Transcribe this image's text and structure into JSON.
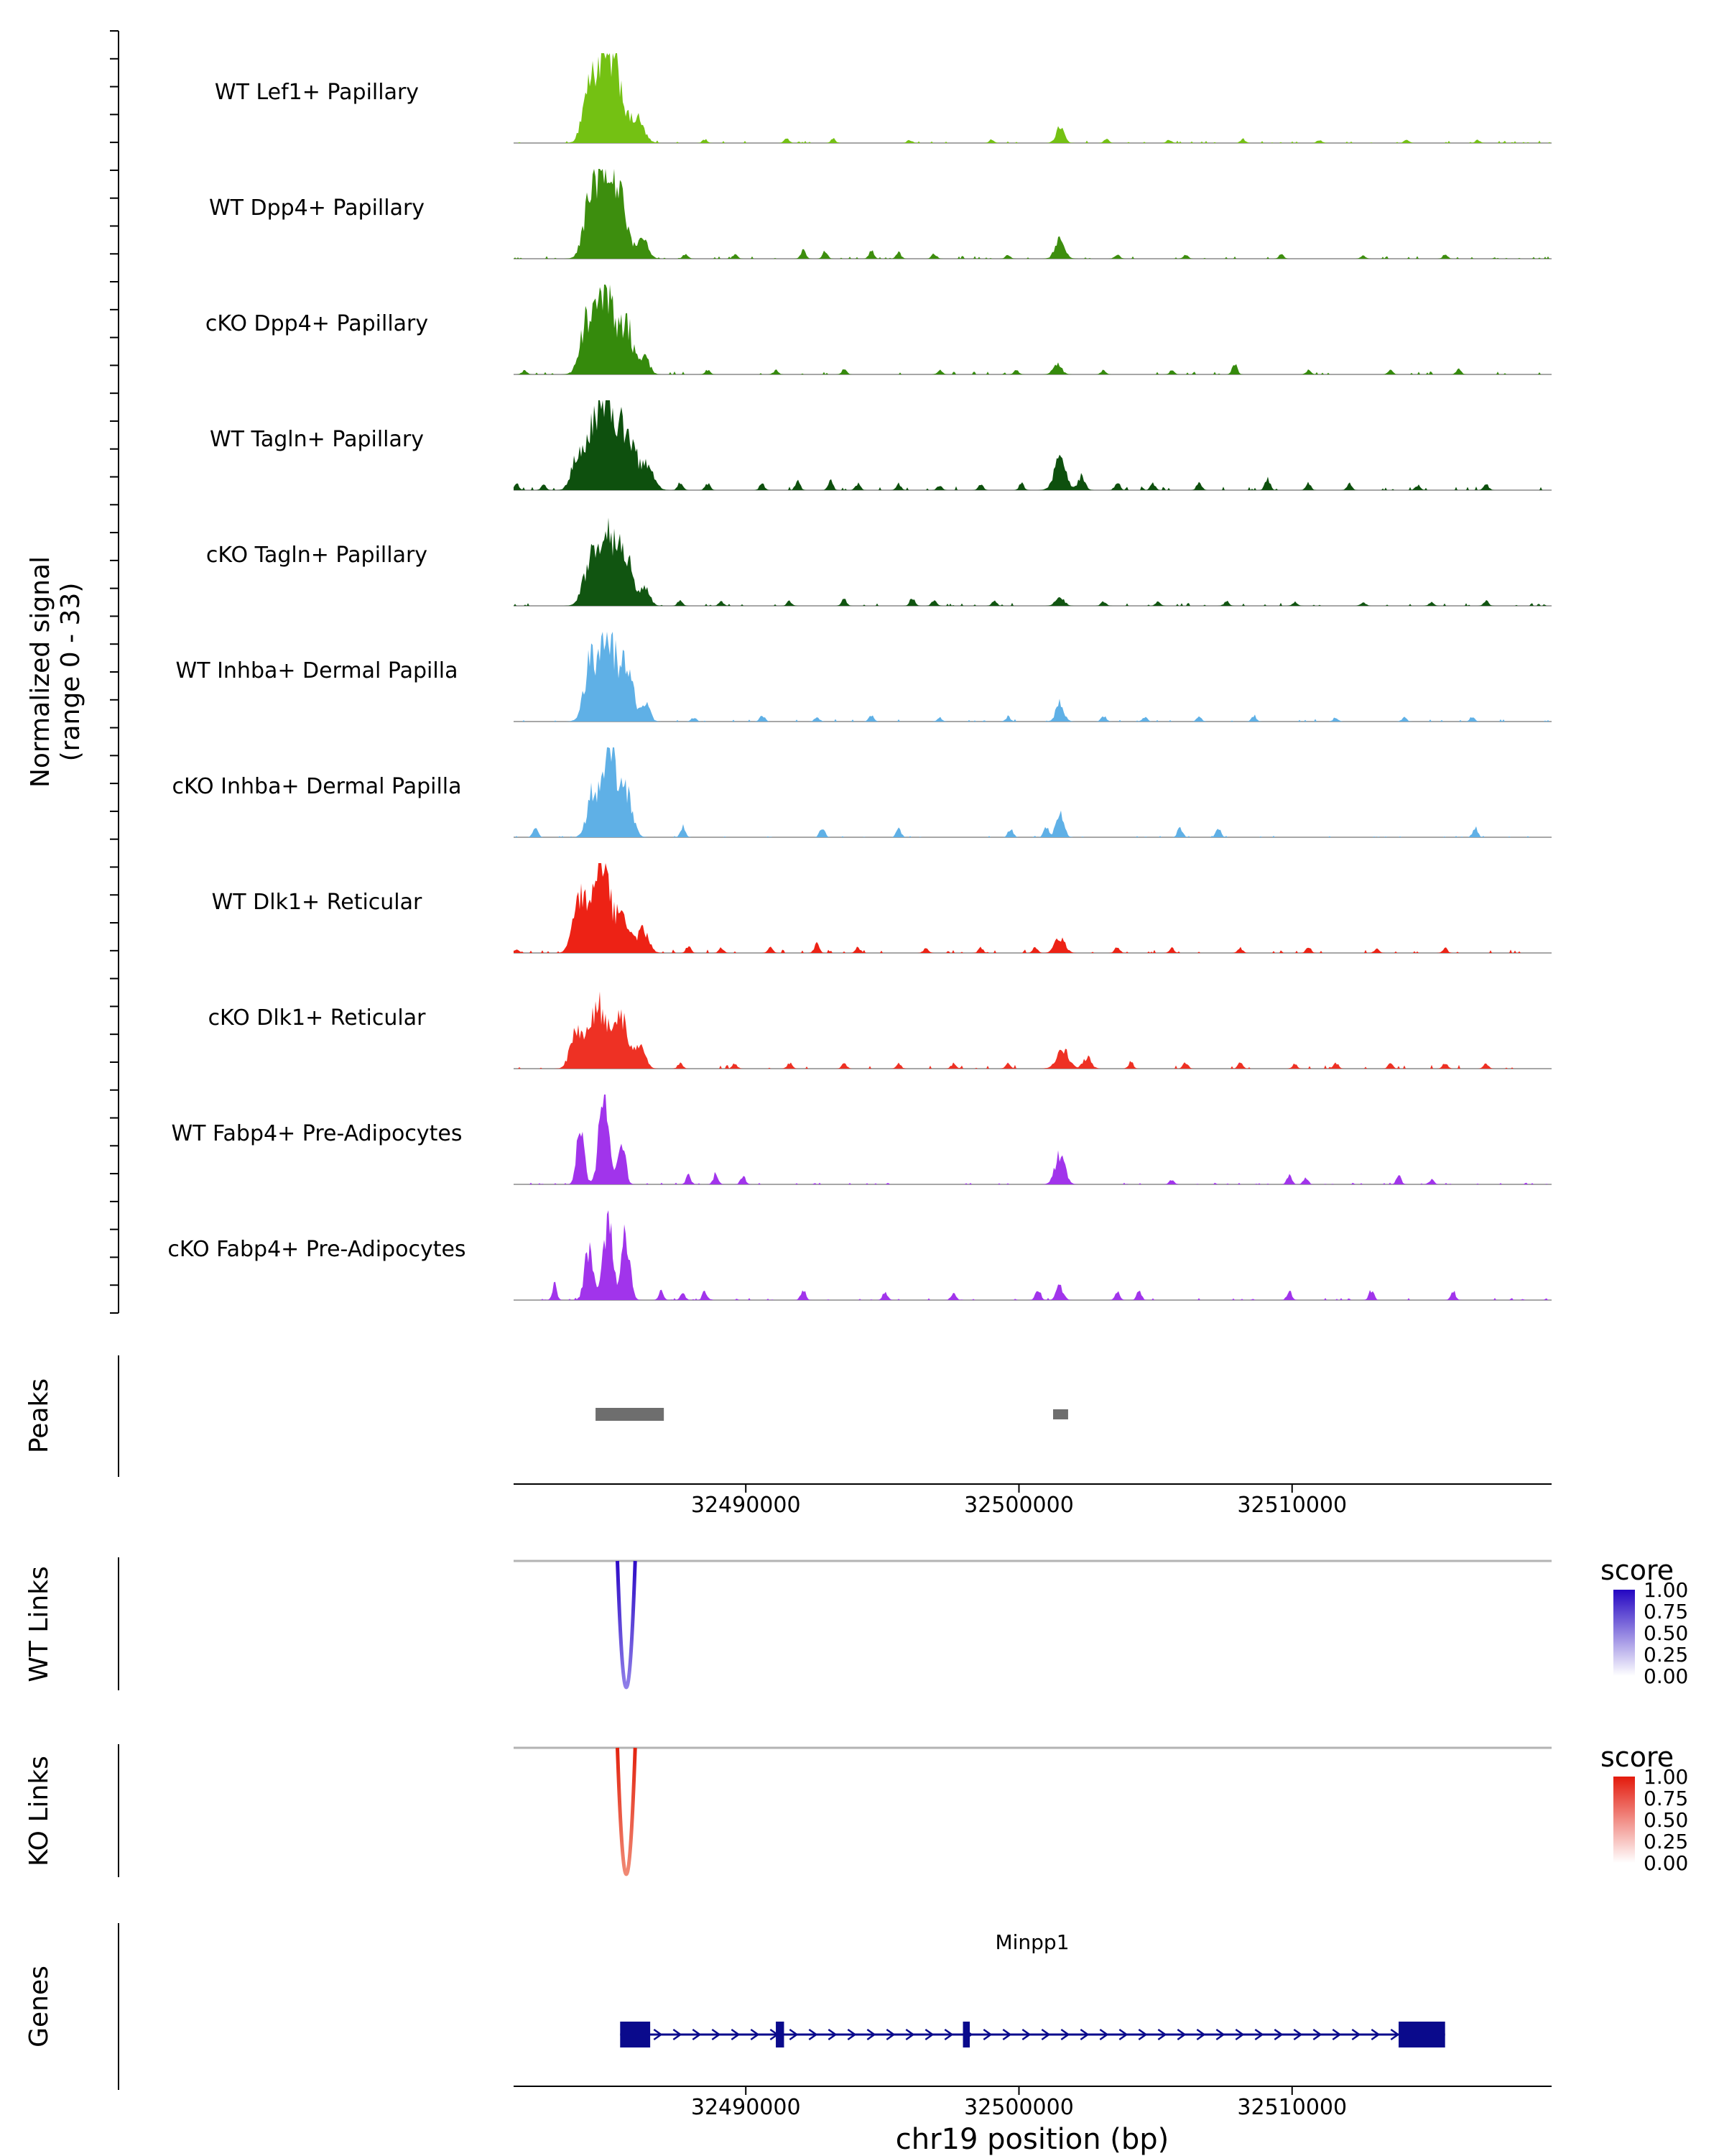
{
  "labels": {
    "y_axis_line1": "Normalized signal",
    "y_axis_line2": "(range 0 - 33)",
    "peaks": "Peaks",
    "wt_links": "WT Links",
    "ko_links": "KO Links",
    "genes": "Genes",
    "x_title": "chr19 position (bp)",
    "score": "score"
  },
  "x_axis": {
    "domain": [
      32481500,
      32519500
    ],
    "ticks": [
      32490000,
      32500000,
      32510000
    ]
  },
  "legend": {
    "ticks": [
      "1.00",
      "0.75",
      "0.50",
      "0.25",
      "0.00"
    ],
    "wt_top_color": "#2406c2",
    "ko_top_color": "#e31a0c",
    "bottom_color": "#ffffff"
  },
  "chart_data": {
    "type": "genome-coverage",
    "chrom": "chr19",
    "y_range": [
      0,
      33
    ],
    "peaks_color": "#6e6e6e",
    "peak_regions": [
      {
        "start": 32484500,
        "end": 32487000
      },
      {
        "start": 32501250,
        "end": 32501800
      }
    ],
    "links": {
      "wt": {
        "anchor1": 32485300,
        "anchor2": 32485950,
        "score": 1.0
      },
      "ko": {
        "anchor1": 32485300,
        "anchor2": 32485950,
        "score": 1.0
      },
      "wt_link_colors": [
        "#2d0bc7",
        "#8f7fe8"
      ],
      "ko_link_colors": [
        "#e3220e",
        "#f08a75"
      ]
    },
    "gene": {
      "name": "Minpp1",
      "start": 32485400,
      "end": 32515600,
      "strand": "+",
      "color": "#0a0a8c",
      "exons": [
        [
          32485400,
          32486500
        ],
        [
          32491100,
          32491400
        ],
        [
          32497950,
          32498200
        ],
        [
          32513900,
          32515600
        ]
      ]
    },
    "tracks": [
      {
        "label": "WT Lef1+ Papillary",
        "color": "#74c113",
        "floor": 0.7,
        "peaks": [
          [
            32484200,
            420,
            14
          ],
          [
            32484800,
            700,
            31
          ],
          [
            32485350,
            420,
            16
          ],
          [
            32486000,
            500,
            9
          ],
          [
            32501500,
            300,
            5.5
          ]
        ],
        "spikes": [
          [
            32488500,
            1.4
          ],
          [
            32491500,
            1.8
          ],
          [
            32493200,
            1.5
          ],
          [
            32496000,
            1.2
          ],
          [
            32499000,
            1.4
          ],
          [
            32503200,
            1.5
          ],
          [
            32505500,
            1.2
          ],
          [
            32508200,
            1.4
          ],
          [
            32511000,
            1.2
          ],
          [
            32514200,
            1.4
          ],
          [
            32516800,
            1.2
          ]
        ]
      },
      {
        "label": "WT Dpp4+ Papillary",
        "color": "#3d8e0e",
        "floor": 0.8,
        "peaks": [
          [
            32484300,
            500,
            17
          ],
          [
            32484900,
            700,
            31
          ],
          [
            32485500,
            420,
            14
          ],
          [
            32486200,
            400,
            8
          ],
          [
            32501500,
            350,
            7
          ]
        ],
        "spikes": [
          [
            32487800,
            1.8
          ],
          [
            32489600,
            1.5
          ],
          [
            32492100,
            3.2
          ],
          [
            32492900,
            2.6
          ],
          [
            32494600,
            3.0
          ],
          [
            32495600,
            2.2
          ],
          [
            32496900,
            1.8
          ],
          [
            32499600,
            1.5
          ],
          [
            32503600,
            1.8
          ],
          [
            32506100,
            1.5
          ],
          [
            32509600,
            1.5
          ],
          [
            32512600,
            1.2
          ],
          [
            32515600,
            1.5
          ]
        ]
      },
      {
        "label": "cKO Dpp4+ Papillary",
        "color": "#358a0c",
        "floor": 0.9,
        "peaks": [
          [
            32484200,
            500,
            19
          ],
          [
            32484900,
            620,
            29
          ],
          [
            32485650,
            450,
            17
          ],
          [
            32486300,
            350,
            6
          ],
          [
            32501400,
            300,
            4.5
          ]
        ],
        "spikes": [
          [
            32481900,
            1.5
          ],
          [
            32488600,
            1.8
          ],
          [
            32491100,
            1.5
          ],
          [
            32493600,
            1.8
          ],
          [
            32497100,
            1.5
          ],
          [
            32499900,
            1.8
          ],
          [
            32503100,
            1.5
          ],
          [
            32505600,
            1.5
          ],
          [
            32507900,
            3.8
          ],
          [
            32510600,
            1.5
          ],
          [
            32513600,
            1.5
          ],
          [
            32516100,
            1.8
          ]
        ]
      },
      {
        "label": "WT Tagln+ Papillary",
        "color": "#0e500e",
        "floor": 1.1,
        "peaks": [
          [
            32483800,
            420,
            11
          ],
          [
            32484400,
            520,
            19
          ],
          [
            32485000,
            700,
            33
          ],
          [
            32485750,
            520,
            18
          ],
          [
            32486450,
            420,
            9
          ],
          [
            32501500,
            420,
            12
          ],
          [
            32502300,
            260,
            5
          ]
        ],
        "spikes": [
          [
            32480600,
            1.8
          ],
          [
            32481600,
            2.5
          ],
          [
            32482600,
            2.2
          ],
          [
            32487600,
            3.2
          ],
          [
            32488600,
            2.5
          ],
          [
            32490600,
            2.5
          ],
          [
            32491900,
            3.2
          ],
          [
            32493100,
            3.8
          ],
          [
            32494100,
            2.5
          ],
          [
            32495600,
            2.2
          ],
          [
            32497100,
            1.8
          ],
          [
            32498600,
            2.2
          ],
          [
            32500100,
            2.5
          ],
          [
            32503600,
            3.2
          ],
          [
            32504900,
            2.5
          ],
          [
            32506600,
            2.8
          ],
          [
            32509100,
            4.5
          ],
          [
            32510600,
            2.5
          ],
          [
            32512100,
            2.2
          ],
          [
            32514600,
            1.8
          ],
          [
            32517100,
            2.5
          ]
        ]
      },
      {
        "label": "cKO Tagln+ Papillary",
        "color": "#115511",
        "floor": 0.9,
        "peaks": [
          [
            32484300,
            500,
            15
          ],
          [
            32485000,
            660,
            27
          ],
          [
            32485650,
            420,
            15
          ],
          [
            32486300,
            350,
            7
          ],
          [
            32501500,
            300,
            3.5
          ]
        ],
        "spikes": [
          [
            32481100,
            1.5
          ],
          [
            32487600,
            2.2
          ],
          [
            32489100,
            1.8
          ],
          [
            32491600,
            1.8
          ],
          [
            32493600,
            2.5
          ],
          [
            32496100,
            3.2
          ],
          [
            32496900,
            2.5
          ],
          [
            32499100,
            1.8
          ],
          [
            32503100,
            1.8
          ],
          [
            32505100,
            1.5
          ],
          [
            32507600,
            1.8
          ],
          [
            32510100,
            1.5
          ],
          [
            32512600,
            1.5
          ],
          [
            32515100,
            1.5
          ],
          [
            32517100,
            1.8
          ]
        ]
      },
      {
        "label": "WT Inhba+ Dermal Papilla",
        "color": "#5fb0e6",
        "floor": 0.8,
        "peaks": [
          [
            32484300,
            460,
            19
          ],
          [
            32484950,
            620,
            30
          ],
          [
            32485650,
            500,
            17
          ],
          [
            32486350,
            300,
            6
          ],
          [
            32501500,
            300,
            6.5
          ]
        ],
        "spikes": [
          [
            32488100,
            1.5
          ],
          [
            32490600,
            2.5
          ],
          [
            32492600,
            1.8
          ],
          [
            32494600,
            2.2
          ],
          [
            32497100,
            1.5
          ],
          [
            32499600,
            1.8
          ],
          [
            32503100,
            2.2
          ],
          [
            32504600,
            1.8
          ],
          [
            32506600,
            1.8
          ],
          [
            32508600,
            2.2
          ],
          [
            32511600,
            1.5
          ],
          [
            32514100,
            1.5
          ],
          [
            32516600,
            1.8
          ]
        ]
      },
      {
        "label": "cKO Inhba+ Dermal Papilla",
        "color": "#5fb0e6",
        "floor": 0.4,
        "peaks": [
          [
            32484400,
            420,
            15
          ],
          [
            32485050,
            560,
            29
          ],
          [
            32485650,
            420,
            14
          ],
          [
            32501500,
            280,
            9
          ]
        ],
        "spikes": [
          [
            32482300,
            3.8
          ],
          [
            32487700,
            3.8
          ],
          [
            32492800,
            3.8
          ],
          [
            32495600,
            3.2
          ],
          [
            32499700,
            3.2
          ],
          [
            32501000,
            3.8
          ],
          [
            32505900,
            3.8
          ],
          [
            32507300,
            3.2
          ],
          [
            32516700,
            3.8
          ]
        ]
      },
      {
        "label": "WT Dlk1+ Reticular",
        "color": "#ed2215",
        "floor": 1.0,
        "peaks": [
          [
            32483900,
            460,
            17
          ],
          [
            32484700,
            700,
            30
          ],
          [
            32485550,
            460,
            13
          ],
          [
            32486250,
            400,
            8
          ],
          [
            32501500,
            350,
            6
          ]
        ],
        "spikes": [
          [
            32481600,
            1.5
          ],
          [
            32487900,
            2.5
          ],
          [
            32489100,
            1.8
          ],
          [
            32490900,
            2.2
          ],
          [
            32492600,
            3.2
          ],
          [
            32494100,
            2.2
          ],
          [
            32496600,
            1.8
          ],
          [
            32498600,
            1.8
          ],
          [
            32500600,
            2.2
          ],
          [
            32503600,
            2.2
          ],
          [
            32505600,
            1.8
          ],
          [
            32508100,
            1.8
          ],
          [
            32510600,
            2.2
          ],
          [
            32513100,
            1.5
          ],
          [
            32515600,
            1.8
          ]
        ]
      },
      {
        "label": "cKO Dlk1+ Reticular",
        "color": "#ee3124",
        "floor": 1.1,
        "peaks": [
          [
            32483800,
            420,
            15
          ],
          [
            32484600,
            620,
            24
          ],
          [
            32485450,
            520,
            17
          ],
          [
            32486150,
            350,
            8
          ],
          [
            32501600,
            460,
            7
          ],
          [
            32502500,
            300,
            4
          ]
        ],
        "spikes": [
          [
            32481100,
            1.8
          ],
          [
            32487600,
            2.2
          ],
          [
            32489600,
            1.8
          ],
          [
            32491600,
            2.2
          ],
          [
            32493600,
            2.2
          ],
          [
            32495600,
            1.8
          ],
          [
            32497600,
            1.8
          ],
          [
            32499600,
            2.2
          ],
          [
            32504100,
            2.5
          ],
          [
            32506100,
            2.2
          ],
          [
            32508100,
            2.2
          ],
          [
            32510100,
            1.8
          ],
          [
            32511600,
            2.2
          ],
          [
            32513600,
            1.8
          ],
          [
            32515600,
            2.2
          ],
          [
            32517100,
            1.8
          ]
        ]
      },
      {
        "label": "WT Fabp4+ Pre-Adipocytes",
        "color": "#a134eb",
        "floor": 0.5,
        "peaks": [
          [
            32483950,
            260,
            24
          ],
          [
            32484800,
            360,
            31
          ],
          [
            32485450,
            260,
            19
          ],
          [
            32501500,
            360,
            10.5
          ]
        ],
        "spikes": [
          [
            32487900,
            3.2
          ],
          [
            32488900,
            3.8
          ],
          [
            32489900,
            3.2
          ],
          [
            32505600,
            1.8
          ],
          [
            32509900,
            3.2
          ],
          [
            32510500,
            2.5
          ],
          [
            32513900,
            3.2
          ],
          [
            32515100,
            1.8
          ]
        ]
      },
      {
        "label": "cKO Fabp4+ Pre-Adipocytes",
        "color": "#a134eb",
        "floor": 0.6,
        "peaks": [
          [
            32483000,
            170,
            6
          ],
          [
            32484250,
            300,
            19
          ],
          [
            32484950,
            360,
            29
          ],
          [
            32485600,
            300,
            24
          ],
          [
            32500700,
            200,
            3.5
          ],
          [
            32501500,
            260,
            5
          ]
        ],
        "spikes": [
          [
            32486900,
            3.2
          ],
          [
            32487700,
            2.5
          ],
          [
            32488500,
            3.2
          ],
          [
            32492100,
            3.8
          ],
          [
            32495100,
            3.2
          ],
          [
            32497600,
            2.5
          ],
          [
            32503600,
            3.2
          ],
          [
            32504400,
            3.2
          ],
          [
            32509900,
            3.2
          ],
          [
            32512900,
            3.8
          ],
          [
            32515900,
            3.2
          ]
        ]
      }
    ]
  }
}
